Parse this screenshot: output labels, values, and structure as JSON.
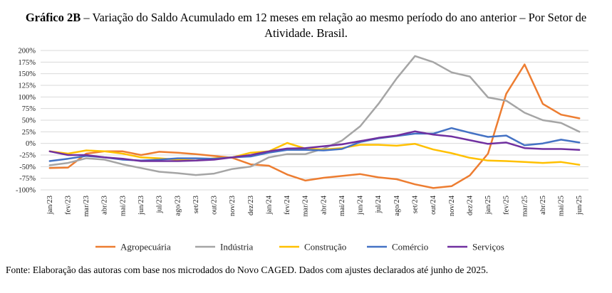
{
  "title": {
    "bold": "Gráfico 2B",
    "rest": " – Variação do Saldo Acumulado em 12 meses em relação ao mesmo período do ano anterior – Por Setor de Atividade. Brasil."
  },
  "source": "Fonte: Elaboração das autoras com base nos microdados do Novo CAGED. Dados com ajustes declarados até junho de 2025.",
  "chart_data": {
    "type": "line",
    "categories": [
      "jan/23",
      "fev/23",
      "mar/23",
      "abr/23",
      "mai/23",
      "jun/23",
      "jul/23",
      "ago/23",
      "set/23",
      "out/23",
      "nov/23",
      "dez/23",
      "jan/24",
      "fev/24",
      "mar/24",
      "abr/24",
      "mai/24",
      "jun/24",
      "jul/24",
      "ago/24",
      "set/24",
      "out/24",
      "nov/24",
      "dez/24",
      "jan/25",
      "fev/25",
      "mar/25",
      "abr/25",
      "mai/25",
      "jun/25"
    ],
    "y_ticks": [
      "200%",
      "175%",
      "150%",
      "125%",
      "100%",
      "75%",
      "50%",
      "25%",
      "0%",
      "-25%",
      "-50%",
      "-75%",
      "-100%"
    ],
    "ylim": [
      -100,
      200
    ],
    "grid": true,
    "legend_position": "bottom",
    "series": [
      {
        "name": "Agropecuária",
        "color": "#ED7D31",
        "values": [
          -53,
          -52,
          -22,
          -17,
          -17,
          -25,
          -18,
          -20,
          -23,
          -27,
          -31,
          -45,
          -48,
          -67,
          -80,
          -74,
          -70,
          -66,
          -73,
          -77,
          -88,
          -96,
          -92,
          -69,
          -22,
          107,
          170,
          85,
          62,
          54
        ]
      },
      {
        "name": "Indústria",
        "color": "#A5A5A5",
        "values": [
          -47,
          -42,
          -32,
          -35,
          -45,
          -53,
          -61,
          -64,
          -68,
          -65,
          -55,
          -50,
          -30,
          -23,
          -23,
          -11,
          6,
          37,
          85,
          140,
          188,
          175,
          153,
          144,
          99,
          92,
          66,
          50,
          44,
          25
        ]
      },
      {
        "name": "Construção",
        "color": "#FFC000",
        "values": [
          -17,
          -22,
          -15,
          -17,
          -22,
          -30,
          -32,
          -35,
          -37,
          -32,
          -30,
          -20,
          -17,
          1,
          -11,
          -13,
          -10,
          -3,
          -3,
          -5,
          -1,
          -13,
          -21,
          -31,
          -37,
          -38,
          -40,
          -42,
          -40,
          -46
        ]
      },
      {
        "name": "Comércio",
        "color": "#4472C4",
        "values": [
          -38,
          -33,
          -27,
          -30,
          -35,
          -37,
          -35,
          -32,
          -32,
          -33,
          -30,
          -28,
          -20,
          -14,
          -14,
          -15,
          -12,
          3,
          11,
          16,
          21,
          21,
          33,
          23,
          14,
          17,
          -4,
          0,
          8,
          2
        ]
      },
      {
        "name": "Serviços",
        "color": "#7030A0",
        "values": [
          -17,
          -25,
          -25,
          -30,
          -33,
          -38,
          -38,
          -38,
          -37,
          -35,
          -30,
          -25,
          -17,
          -11,
          -10,
          -6,
          -2,
          5,
          12,
          17,
          26,
          19,
          15,
          7,
          -1,
          2,
          -10,
          -12,
          -12,
          -14
        ]
      }
    ]
  }
}
